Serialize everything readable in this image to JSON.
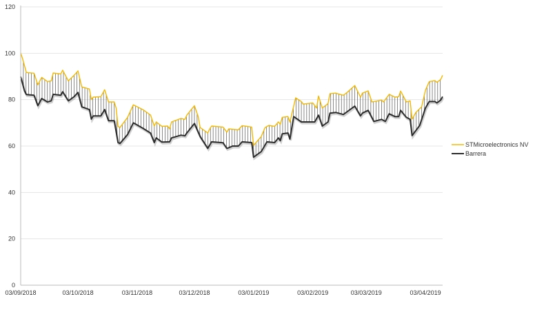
{
  "chart_data": {
    "type": "line",
    "title": "",
    "xlabel": "",
    "ylabel": "",
    "start_date": "03/09/2018",
    "x_units": "days since 03/09/2018",
    "xlim": [
      0,
      221
    ],
    "ylim": [
      0,
      120
    ],
    "y_ticks": [
      0,
      20,
      40,
      60,
      80,
      100,
      120
    ],
    "x_ticks": [
      {
        "day": 0,
        "label": "03/09/2018"
      },
      {
        "day": 30,
        "label": "03/10/2018"
      },
      {
        "day": 61,
        "label": "03/11/2018"
      },
      {
        "day": 91,
        "label": "03/12/2018"
      },
      {
        "day": 122,
        "label": "03/01/2019"
      },
      {
        "day": 153,
        "label": "03/02/2019"
      },
      {
        "day": 181,
        "label": "03/03/2019"
      },
      {
        "day": 212,
        "label": "03/04/2019"
      }
    ],
    "grid": "horizontal",
    "legend_position": "right",
    "series": [
      {
        "name": "STMicroelectronics NV",
        "color": "#f5b800",
        "points": [
          [
            0,
            100.1
          ],
          [
            1,
            97.6
          ],
          [
            3,
            91.7
          ],
          [
            7,
            91.4
          ],
          [
            9,
            86.4
          ],
          [
            11,
            89.6
          ],
          [
            14,
            87.8
          ],
          [
            16,
            88.1
          ],
          [
            17,
            91.5
          ],
          [
            21,
            91.1
          ],
          [
            22,
            92.7
          ],
          [
            25,
            88.1
          ],
          [
            28,
            90.5
          ],
          [
            30,
            92.4
          ],
          [
            32,
            85.5
          ],
          [
            36,
            84.6
          ],
          [
            37,
            80.1
          ],
          [
            38,
            81.1
          ],
          [
            42,
            81.3
          ],
          [
            44,
            84.3
          ],
          [
            46,
            79
          ],
          [
            49,
            79
          ],
          [
            50,
            76.3
          ],
          [
            51,
            68.5
          ],
          [
            52,
            68
          ],
          [
            56,
            72.4
          ],
          [
            59,
            77.8
          ],
          [
            64,
            75.7
          ],
          [
            68,
            73.4
          ],
          [
            70,
            68.6
          ],
          [
            71,
            70.4
          ],
          [
            74,
            68.5
          ],
          [
            77,
            68.6
          ],
          [
            78,
            67.4
          ],
          [
            79,
            70.4
          ],
          [
            84,
            71.9
          ],
          [
            86,
            71.5
          ],
          [
            87,
            73.3
          ],
          [
            91,
            77.4
          ],
          [
            93,
            72.7
          ],
          [
            94,
            68
          ],
          [
            98,
            65.6
          ],
          [
            99,
            67.4
          ],
          [
            100,
            68.6
          ],
          [
            106,
            68.2
          ],
          [
            108,
            66
          ],
          [
            109,
            67.4
          ],
          [
            114,
            67
          ],
          [
            116,
            68.8
          ],
          [
            121,
            68.2
          ],
          [
            122,
            60.3
          ],
          [
            126,
            64.1
          ],
          [
            128,
            68
          ],
          [
            130,
            68.9
          ],
          [
            133,
            68.5
          ],
          [
            135,
            70.4
          ],
          [
            136,
            69.4
          ],
          [
            137,
            72.4
          ],
          [
            140,
            72.7
          ],
          [
            141,
            70.3
          ],
          [
            144,
            80.8
          ],
          [
            147,
            79.2
          ],
          [
            148,
            78.1
          ],
          [
            153,
            78.6
          ],
          [
            155,
            76.4
          ],
          [
            156,
            81.6
          ],
          [
            158,
            76.4
          ],
          [
            161,
            78.3
          ],
          [
            162,
            82.6
          ],
          [
            165,
            82.8
          ],
          [
            169,
            81.9
          ],
          [
            171,
            83.1
          ],
          [
            175,
            86.1
          ],
          [
            178,
            81.1
          ],
          [
            179,
            82.8
          ],
          [
            182,
            83.8
          ],
          [
            184,
            79
          ],
          [
            189,
            79.8
          ],
          [
            190,
            79
          ],
          [
            193,
            82.3
          ],
          [
            196,
            81.1
          ],
          [
            198,
            81.3
          ],
          [
            199,
            83.7
          ],
          [
            202,
            79
          ],
          [
            204,
            79.5
          ],
          [
            205,
            71.6
          ],
          [
            207,
            74.5
          ],
          [
            210,
            76.9
          ],
          [
            212,
            84.1
          ],
          [
            214,
            87.8
          ],
          [
            217,
            88.2
          ],
          [
            218,
            87.5
          ],
          [
            220,
            88.7
          ],
          [
            221,
            90.5
          ]
        ]
      },
      {
        "name": "Barrera",
        "color": "#2b2b2b",
        "points": [
          [
            0,
            89.9
          ],
          [
            2,
            83.8
          ],
          [
            3,
            82.2
          ],
          [
            7,
            81.9
          ],
          [
            9,
            77.4
          ],
          [
            11,
            80.5
          ],
          [
            14,
            79
          ],
          [
            16,
            79.5
          ],
          [
            17,
            82.3
          ],
          [
            21,
            81.9
          ],
          [
            22,
            83.4
          ],
          [
            25,
            79.5
          ],
          [
            28,
            81.3
          ],
          [
            30,
            83.1
          ],
          [
            32,
            76.9
          ],
          [
            36,
            75.7
          ],
          [
            37,
            71.6
          ],
          [
            38,
            73
          ],
          [
            42,
            73
          ],
          [
            44,
            75.7
          ],
          [
            46,
            70.9
          ],
          [
            49,
            70.9
          ],
          [
            51,
            61.5
          ],
          [
            52,
            61.1
          ],
          [
            56,
            65
          ],
          [
            59,
            70
          ],
          [
            64,
            67.7
          ],
          [
            68,
            65.6
          ],
          [
            70,
            61.5
          ],
          [
            71,
            63.5
          ],
          [
            74,
            61.7
          ],
          [
            78,
            61.8
          ],
          [
            79,
            63.5
          ],
          [
            84,
            64.7
          ],
          [
            86,
            64.4
          ],
          [
            87,
            65.6
          ],
          [
            91,
            69.7
          ],
          [
            94,
            64.1
          ],
          [
            98,
            59
          ],
          [
            100,
            61.8
          ],
          [
            106,
            61.4
          ],
          [
            108,
            59
          ],
          [
            109,
            59.3
          ],
          [
            111,
            60
          ],
          [
            114,
            60
          ],
          [
            116,
            61.8
          ],
          [
            121,
            61.5
          ],
          [
            122,
            55.2
          ],
          [
            126,
            57.6
          ],
          [
            129,
            61.8
          ],
          [
            133,
            61.5
          ],
          [
            135,
            63.5
          ],
          [
            136,
            62.3
          ],
          [
            137,
            65.3
          ],
          [
            140,
            65.6
          ],
          [
            141,
            63
          ],
          [
            143,
            72.7
          ],
          [
            147,
            70.4
          ],
          [
            154,
            70.4
          ],
          [
            156,
            73.3
          ],
          [
            158,
            68.6
          ],
          [
            161,
            70.4
          ],
          [
            162,
            74.2
          ],
          [
            165,
            74.5
          ],
          [
            169,
            73.6
          ],
          [
            175,
            77.2
          ],
          [
            178,
            73
          ],
          [
            179,
            74.2
          ],
          [
            182,
            75.4
          ],
          [
            185,
            70.6
          ],
          [
            189,
            71.5
          ],
          [
            191,
            70.6
          ],
          [
            193,
            73.9
          ],
          [
            196,
            72.7
          ],
          [
            198,
            72.7
          ],
          [
            199,
            75.4
          ],
          [
            202,
            72.4
          ],
          [
            204,
            71.5
          ],
          [
            205,
            64.5
          ],
          [
            209,
            68.9
          ],
          [
            212,
            76.4
          ],
          [
            214,
            79.2
          ],
          [
            217,
            79.2
          ],
          [
            218,
            78.6
          ],
          [
            220,
            79.8
          ],
          [
            221,
            81.3
          ]
        ]
      }
    ]
  }
}
